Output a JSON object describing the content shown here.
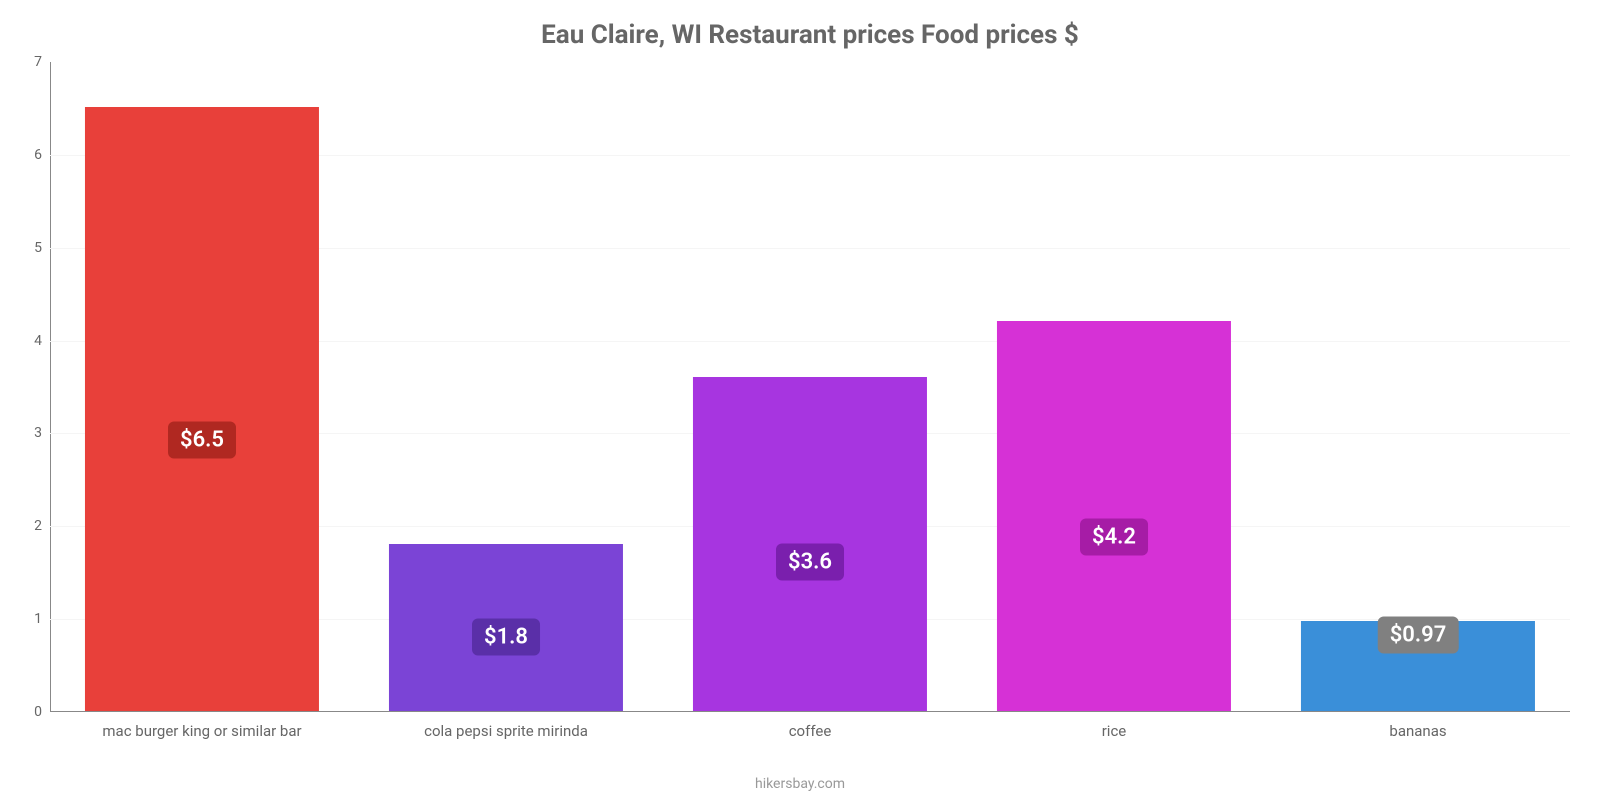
{
  "chart": {
    "type": "bar",
    "title": "Eau Claire, WI Restaurant prices Food prices $",
    "title_fontsize": 26,
    "title_color": "#666666",
    "background_color": "#ffffff",
    "grid_color": "#f5f5f5",
    "axis_color": "#888888",
    "tick_label_color": "#666666",
    "tick_fontsize": 14,
    "category_fontsize": 15,
    "bar_width_ratio": 0.77,
    "ylim": [
      0,
      7
    ],
    "yticks": [
      0,
      1,
      2,
      3,
      4,
      5,
      6,
      7
    ],
    "categories": [
      "mac burger king or similar bar",
      "cola pepsi sprite mirinda",
      "coffee",
      "rice",
      "bananas"
    ],
    "values": [
      6.5,
      1.8,
      3.6,
      4.2,
      0.97
    ],
    "value_labels": [
      "$6.5",
      "$1.8",
      "$3.6",
      "$4.2",
      "$0.97"
    ],
    "bar_colors": [
      "#e8403a",
      "#7b44d6",
      "#a735e0",
      "#d631d6",
      "#3a8fd9"
    ],
    "badge_bg_colors": [
      "#b02821",
      "#5a2fa8",
      "#7a1fad",
      "#a61ca6",
      "#808080"
    ],
    "badge_fontsize": 22,
    "badge_text_color": "#ffffff"
  },
  "footer": {
    "text": "hikersbay.com",
    "color": "#999999",
    "fontsize": 14
  }
}
